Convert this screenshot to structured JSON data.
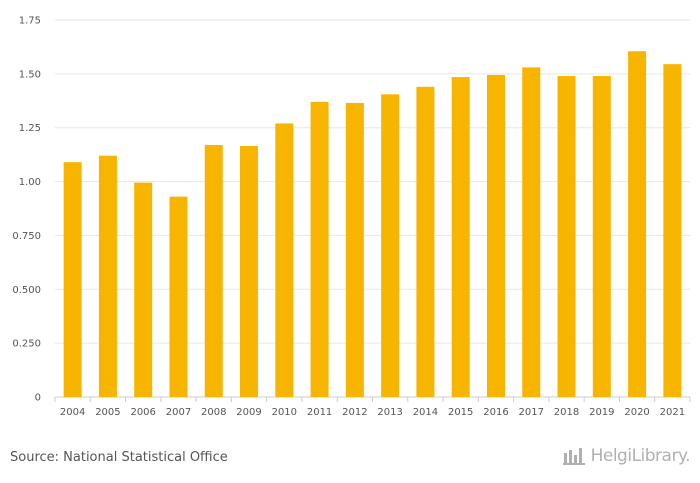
{
  "chart_data": {
    "type": "bar",
    "categories": [
      "2004",
      "2005",
      "2006",
      "2007",
      "2008",
      "2009",
      "2010",
      "2011",
      "2012",
      "2013",
      "2014",
      "2015",
      "2016",
      "2017",
      "2018",
      "2019",
      "2020",
      "2021"
    ],
    "values": [
      1.09,
      1.12,
      0.995,
      0.93,
      1.17,
      1.165,
      1.27,
      1.37,
      1.365,
      1.405,
      1.44,
      1.485,
      1.495,
      1.53,
      1.49,
      1.49,
      1.605,
      1.545
    ],
    "ylim": [
      0,
      1.75
    ],
    "yticks": [
      "0",
      "0.250",
      "0.500",
      "0.750",
      "1.00",
      "1.25",
      "1.50",
      "1.75"
    ],
    "bar_color": "#f7b500",
    "grid": true
  },
  "footer": {
    "source": "Source: National Statistical Office",
    "logo_text": "HelgiLibrary."
  }
}
